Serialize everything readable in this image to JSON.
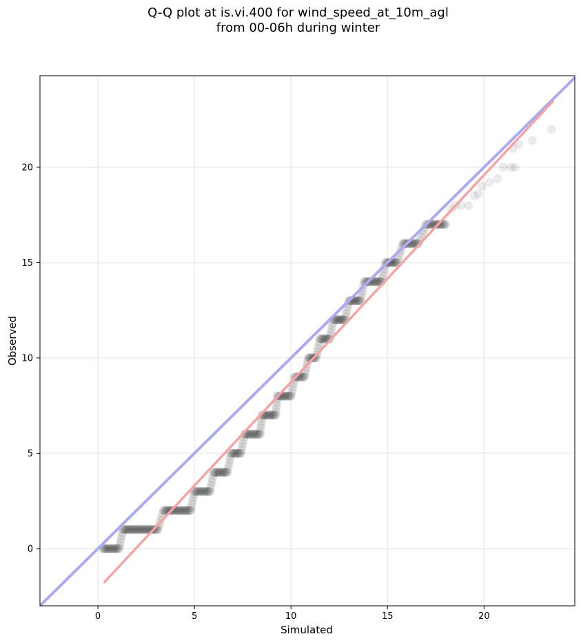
{
  "chart_data": {
    "type": "scatter",
    "title": [
      "Q-Q plot at is.vi.400 for wind_speed_at_10m_agl",
      "from 00-06h during winter"
    ],
    "xlabel": "Simulated",
    "ylabel": "Observed",
    "xlim": [
      -3,
      24.7
    ],
    "ylim": [
      -3,
      24.8
    ],
    "xticks": [
      0,
      5,
      10,
      15,
      20
    ],
    "yticks": [
      0,
      5,
      10,
      15,
      20
    ],
    "grid": true,
    "colors": {
      "points": "#000000",
      "identity_line": "#aaaaf0",
      "fit_line": "#f5a3a3",
      "grid": "#ebebeb"
    },
    "identity_line": {
      "x": [
        -3,
        24.7
      ],
      "y": [
        -3,
        24.7
      ]
    },
    "fit_line": {
      "x": [
        0.3,
        23.6
      ],
      "y": [
        -1.8,
        23.5
      ]
    },
    "steps": [
      {
        "y": 0,
        "x_start": 0.25,
        "x_end": 1.1
      },
      {
        "y": 1,
        "x_start": 1.3,
        "x_end": 3.1
      },
      {
        "y": 2,
        "x_start": 3.4,
        "x_end": 4.8
      },
      {
        "y": 3,
        "x_start": 5.0,
        "x_end": 5.8
      },
      {
        "y": 4,
        "x_start": 6.0,
        "x_end": 6.7
      },
      {
        "y": 5,
        "x_start": 6.9,
        "x_end": 7.4
      },
      {
        "y": 6,
        "x_start": 7.6,
        "x_end": 8.4
      },
      {
        "y": 7,
        "x_start": 8.5,
        "x_end": 9.2
      },
      {
        "y": 8,
        "x_start": 9.3,
        "x_end": 10.0
      },
      {
        "y": 9,
        "x_start": 10.2,
        "x_end": 10.7
      },
      {
        "y": 10,
        "x_start": 10.9,
        "x_end": 11.3
      },
      {
        "y": 11,
        "x_start": 11.5,
        "x_end": 12.0
      },
      {
        "y": 12,
        "x_start": 12.2,
        "x_end": 12.8
      },
      {
        "y": 13,
        "x_start": 13.0,
        "x_end": 13.6
      },
      {
        "y": 14,
        "x_start": 13.8,
        "x_end": 14.7
      },
      {
        "y": 15,
        "x_start": 14.9,
        "x_end": 15.5
      },
      {
        "y": 16,
        "x_start": 15.8,
        "x_end": 16.6
      },
      {
        "y": 17,
        "x_start": 17.0,
        "x_end": 18.0
      }
    ],
    "tail_points": [
      {
        "x": 18.3,
        "y": 17.8
      },
      {
        "x": 18.5,
        "y": 18.0
      },
      {
        "x": 18.8,
        "y": 18.0
      },
      {
        "x": 19.2,
        "y": 18.0
      },
      {
        "x": 19.5,
        "y": 18.5
      },
      {
        "x": 19.7,
        "y": 18.6
      },
      {
        "x": 19.9,
        "y": 19.0
      },
      {
        "x": 20.3,
        "y": 19.2
      },
      {
        "x": 20.7,
        "y": 19.4
      },
      {
        "x": 21.0,
        "y": 20.0
      },
      {
        "x": 21.4,
        "y": 20.0
      },
      {
        "x": 21.6,
        "y": 20.0
      },
      {
        "x": 21.5,
        "y": 21.0
      },
      {
        "x": 21.8,
        "y": 21.2
      },
      {
        "x": 22.5,
        "y": 21.4
      },
      {
        "x": 23.5,
        "y": 22.0
      }
    ]
  }
}
